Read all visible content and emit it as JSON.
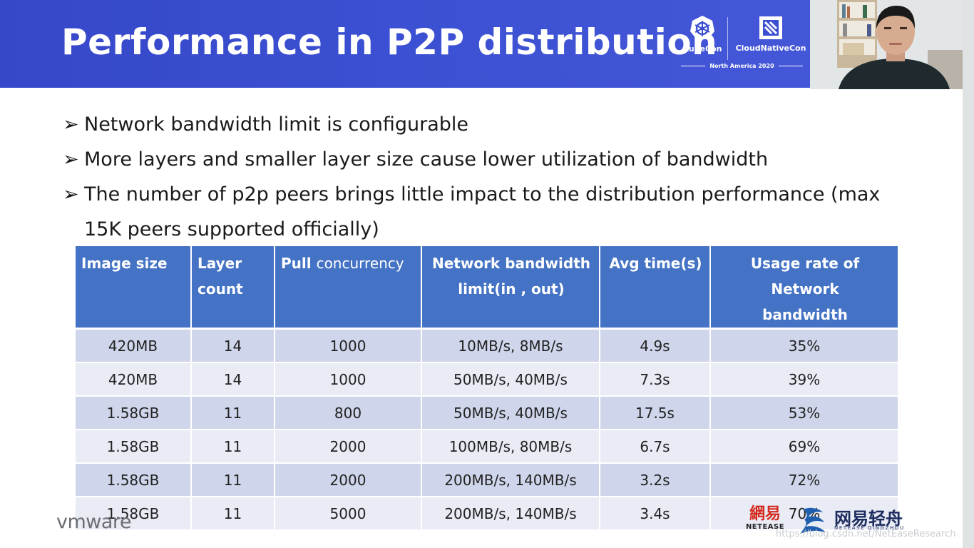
{
  "slide": {
    "title": "Performance in P2P distribution",
    "header_color": "#3b4fd0",
    "accent_color": "#4472c4"
  },
  "conference": {
    "kubecon": "KubeCon",
    "cloudnativecon": "CloudNativeCon",
    "subtitle": "North America 2020"
  },
  "bullets": [
    {
      "text": "Network bandwidth limit is configurable"
    },
    {
      "text": "More layers and smaller layer size cause lower utilization of bandwidth"
    },
    {
      "text": "The number of p2p peers brings little impact to the distribution performance (max"
    },
    {
      "text": "15K peers supported officially)"
    }
  ],
  "table": {
    "headers": {
      "image_size": "Image size",
      "layer_count_1": "Layer",
      "layer_count_2": "count",
      "pull_1": "Pull",
      "pull_2": "concurrency",
      "bandwidth_1": "Network bandwidth",
      "bandwidth_2": "limit(in , out)",
      "avg_time": "Avg time(s)",
      "usage_1": "Usage rate of Network",
      "usage_2": "bandwidth"
    },
    "rows": [
      {
        "image_size": "420MB",
        "layers": "14",
        "concurrency": "1000",
        "bandwidth": "10MB/s, 8MB/s",
        "avg_time": "4.9s",
        "usage": "35%"
      },
      {
        "image_size": "420MB",
        "layers": "14",
        "concurrency": "1000",
        "bandwidth": "50MB/s, 40MB/s",
        "avg_time": "7.3s",
        "usage": "39%"
      },
      {
        "image_size": "1.58GB",
        "layers": "11",
        "concurrency": "800",
        "bandwidth": "50MB/s, 40MB/s",
        "avg_time": "17.5s",
        "usage": "53%"
      },
      {
        "image_size": "1.58GB",
        "layers": "11",
        "concurrency": "2000",
        "bandwidth": "100MB/s, 80MB/s",
        "avg_time": "6.7s",
        "usage": "69%"
      },
      {
        "image_size": "1.58GB",
        "layers": "11",
        "concurrency": "2000",
        "bandwidth": "200MB/s, 140MB/s",
        "avg_time": "3.2s",
        "usage": "72%"
      },
      {
        "image_size": "1.58GB",
        "layers": "11",
        "concurrency": "5000",
        "bandwidth": "200MB/s, 140MB/s",
        "avg_time": "3.4s",
        "usage": "70%"
      }
    ]
  },
  "footer": {
    "vmware": "vmware",
    "netease_cn": "網易",
    "netease_en": "NETEASE",
    "qingzhou_cn": "网易轻舟",
    "qingzhou_en": "NETEASE QINGZHOU",
    "watermark": "https://blog.csdn.net/NetEaseResearch"
  },
  "icons": {
    "bullet": "arrow-bullet-icon",
    "kubernetes": "kubernetes-wheel-icon",
    "cncf": "cncf-icon",
    "qingzhou": "qingzhou-wave-icon"
  }
}
